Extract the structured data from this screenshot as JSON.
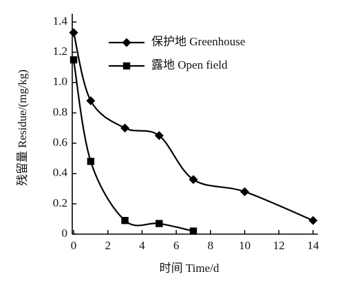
{
  "chart_data": {
    "type": "line",
    "xlabel": "时间 Time/d",
    "ylabel": "残留量 Residue/(mg/kg)",
    "xlim": [
      0,
      14
    ],
    "xticks": [
      0,
      2,
      4,
      6,
      8,
      10,
      12,
      14
    ],
    "ylim": [
      0,
      1.4
    ],
    "yticks": [
      0,
      0.2,
      0.4,
      0.6,
      0.8,
      {
        "value": 1,
        "label": "1.0"
      },
      1.2,
      1.4
    ],
    "series": [
      {
        "name": "保护地 Greenhouse",
        "color": "#000000",
        "marker": "diamond",
        "x": [
          0,
          1,
          3,
          5,
          7,
          10,
          14
        ],
        "values": [
          1.33,
          0.88,
          0.7,
          0.65,
          0.36,
          0.28,
          0.09
        ]
      },
      {
        "name": "露地 Open field",
        "color": "#000000",
        "marker": "square",
        "x": [
          0,
          1,
          3,
          5,
          7
        ],
        "values": [
          1.15,
          0.48,
          0.09,
          0.07,
          0.02
        ]
      }
    ]
  }
}
